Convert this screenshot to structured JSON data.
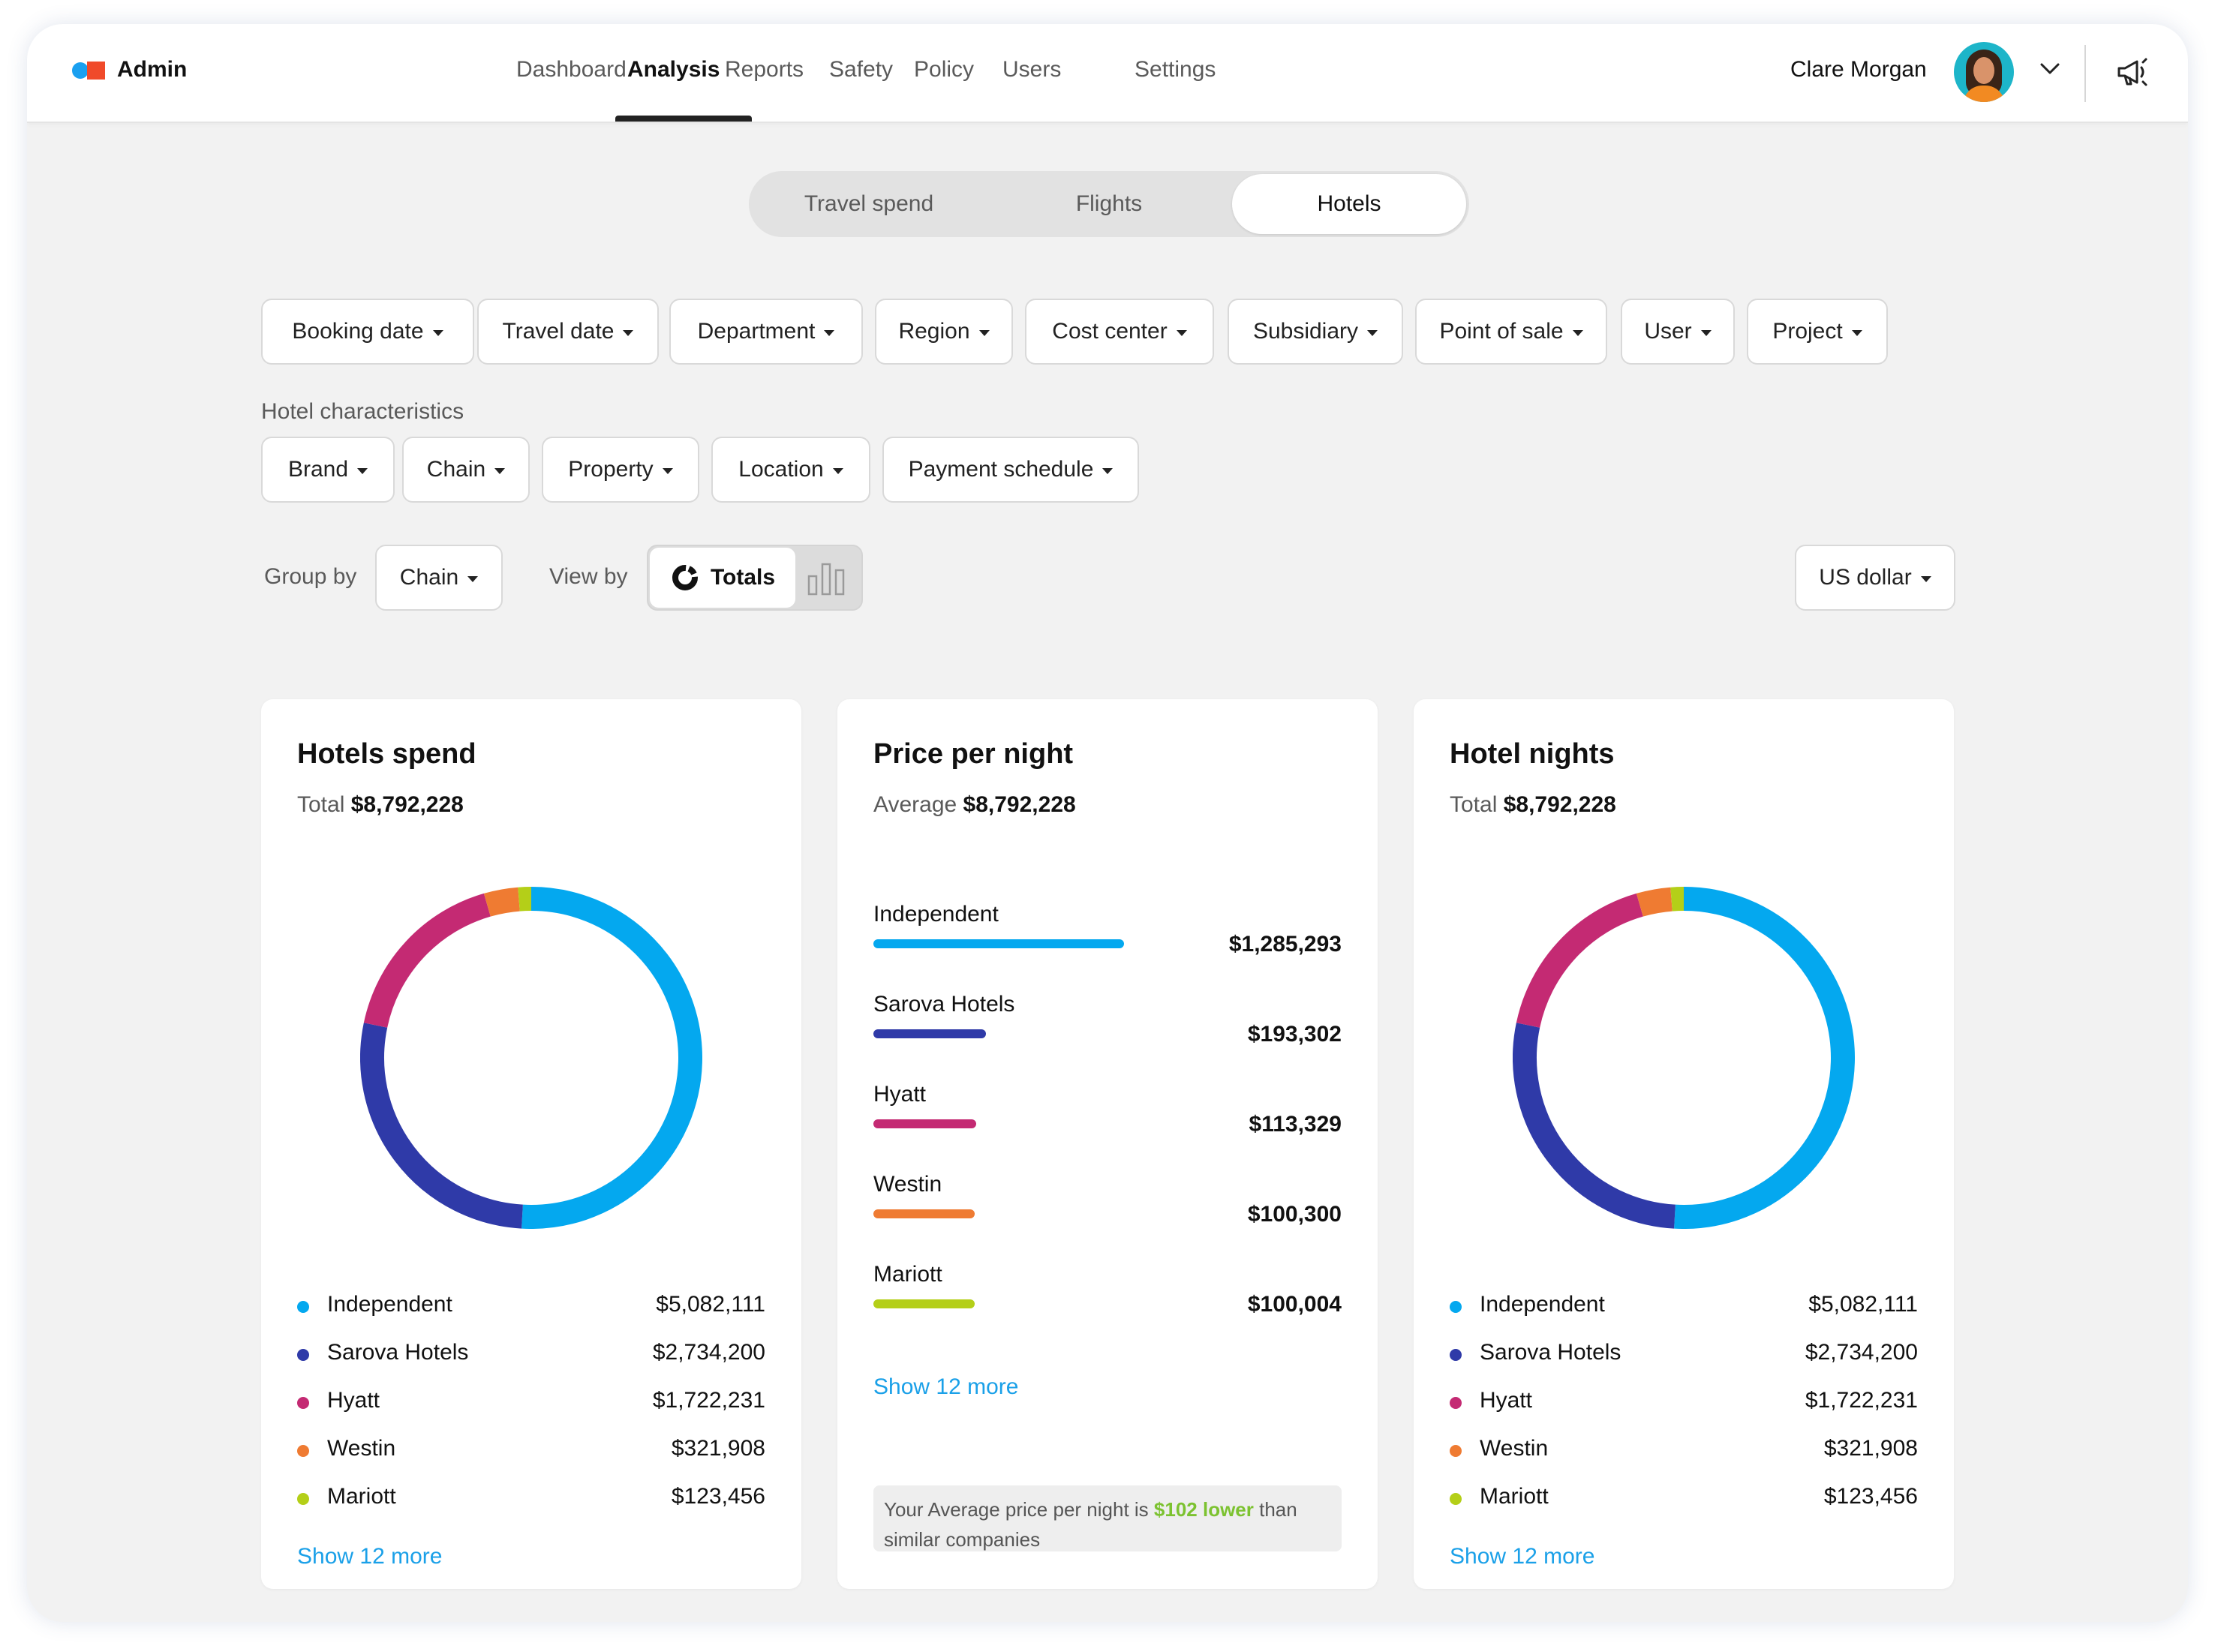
{
  "brand": {
    "name": "Admin",
    "colors": {
      "dot": "#1aa0f0",
      "square": "#f04a2a"
    }
  },
  "nav": {
    "items": [
      "Dashboard",
      "Analysis",
      "Reports",
      "Safety",
      "Policy",
      "Users",
      "Settings"
    ],
    "active": "Analysis"
  },
  "user": {
    "name": "Clare Morgan",
    "avatar_icon": "user-avatar",
    "menu_icon": "chevron-down-icon",
    "notify_icon": "megaphone-icon"
  },
  "segments": {
    "items": [
      "Travel spend",
      "Flights",
      "Hotels"
    ],
    "active": "Hotels"
  },
  "filters": [
    "Booking date",
    "Travel date",
    "Department",
    "Region",
    "Cost center",
    "Subsidiary",
    "Point of sale",
    "User",
    "Project"
  ],
  "hotel_characteristics": {
    "label": "Hotel characteristics",
    "filters": [
      "Brand",
      "Chain",
      "Property",
      "Location",
      "Payment schedule"
    ]
  },
  "controls": {
    "group_by_label": "Group by",
    "group_by_value": "Chain",
    "view_by_label": "View by",
    "view_by_active": "Totals",
    "currency": "US dollar"
  },
  "series_colors": {
    "Independent": "#04a8ef",
    "Sarova Hotels": "#2f3aa8",
    "Hyatt": "#c42a73",
    "Westin": "#ef7b32",
    "Mariott": "#b4cf18"
  },
  "cards": {
    "spend": {
      "title": "Hotels spend",
      "sub_label": "Total",
      "sub_value": "$8,792,228",
      "legend": [
        {
          "name": "Independent",
          "value": "$5,082,111"
        },
        {
          "name": "Sarova Hotels",
          "value": "$2,734,200"
        },
        {
          "name": "Hyatt",
          "value": "$1,722,231"
        },
        {
          "name": "Westin",
          "value": "$321,908"
        },
        {
          "name": "Mariott",
          "value": "$123,456"
        }
      ],
      "show_more": "Show 12 more"
    },
    "price": {
      "title": "Price per night",
      "sub_label": "Average",
      "sub_value": "$8,792,228",
      "rows": [
        {
          "name": "Independent",
          "value": "$1,285,293"
        },
        {
          "name": "Sarova Hotels",
          "value": "$193,302"
        },
        {
          "name": "Hyatt",
          "value": "$113,329"
        },
        {
          "name": "Westin",
          "value": "$100,300"
        },
        {
          "name": "Mariott",
          "value": "$100,004"
        }
      ],
      "show_more": "Show 12 more",
      "note_pre": "Your Average price per night is ",
      "note_highlight": "$102 lower",
      "note_post": " than similar companies"
    },
    "nights": {
      "title": "Hotel nights",
      "sub_label": "Total",
      "sub_value": "$8,792,228",
      "legend": [
        {
          "name": "Independent",
          "value": "$5,082,111"
        },
        {
          "name": "Sarova Hotels",
          "value": "$2,734,200"
        },
        {
          "name": "Hyatt",
          "value": "$1,722,231"
        },
        {
          "name": "Westin",
          "value": "$321,908"
        },
        {
          "name": "Mariott",
          "value": "$123,456"
        }
      ],
      "show_more": "Show 12 more"
    }
  },
  "chart_data": [
    {
      "type": "pie",
      "categories": [
        "Independent",
        "Sarova Hotels",
        "Hyatt",
        "Westin",
        "Mariott"
      ],
      "values": [
        5082111,
        2734200,
        1722231,
        321908,
        123456
      ]
    },
    {
      "type": "bar",
      "categories": [
        "Independent",
        "Sarova Hotels",
        "Hyatt",
        "Westin",
        "Mariott"
      ],
      "values": [
        1285293,
        193302,
        113329,
        100300,
        100004
      ]
    },
    {
      "type": "pie",
      "categories": [
        "Independent",
        "Sarova Hotels",
        "Hyatt",
        "Westin",
        "Mariott"
      ],
      "values": [
        5082111,
        2734200,
        1722231,
        321908,
        123456
      ]
    }
  ]
}
